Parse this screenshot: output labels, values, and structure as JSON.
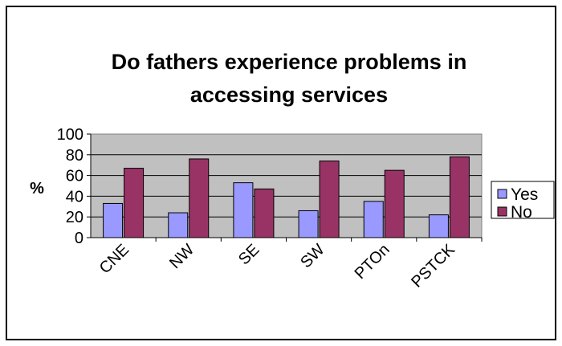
{
  "chart_data": {
    "type": "bar",
    "title_lines": [
      "Do fathers experience problems in",
      "accessing services"
    ],
    "ylabel": "%",
    "xlabel": "",
    "ylim": [
      0,
      100
    ],
    "yticks": [
      0,
      20,
      40,
      60,
      80,
      100
    ],
    "categories": [
      "CNE",
      "NW",
      "SE",
      "SW",
      "PTOn",
      "PSTCK"
    ],
    "series": [
      {
        "name": "Yes",
        "color": "#9999FF",
        "values": [
          33,
          24,
          53,
          26,
          35,
          22
        ]
      },
      {
        "name": "No",
        "color": "#993366",
        "values": [
          67,
          76,
          47,
          74,
          65,
          78
        ]
      }
    ],
    "grid": true,
    "legend_position": "right",
    "plot_background": "#C0C0C0"
  }
}
